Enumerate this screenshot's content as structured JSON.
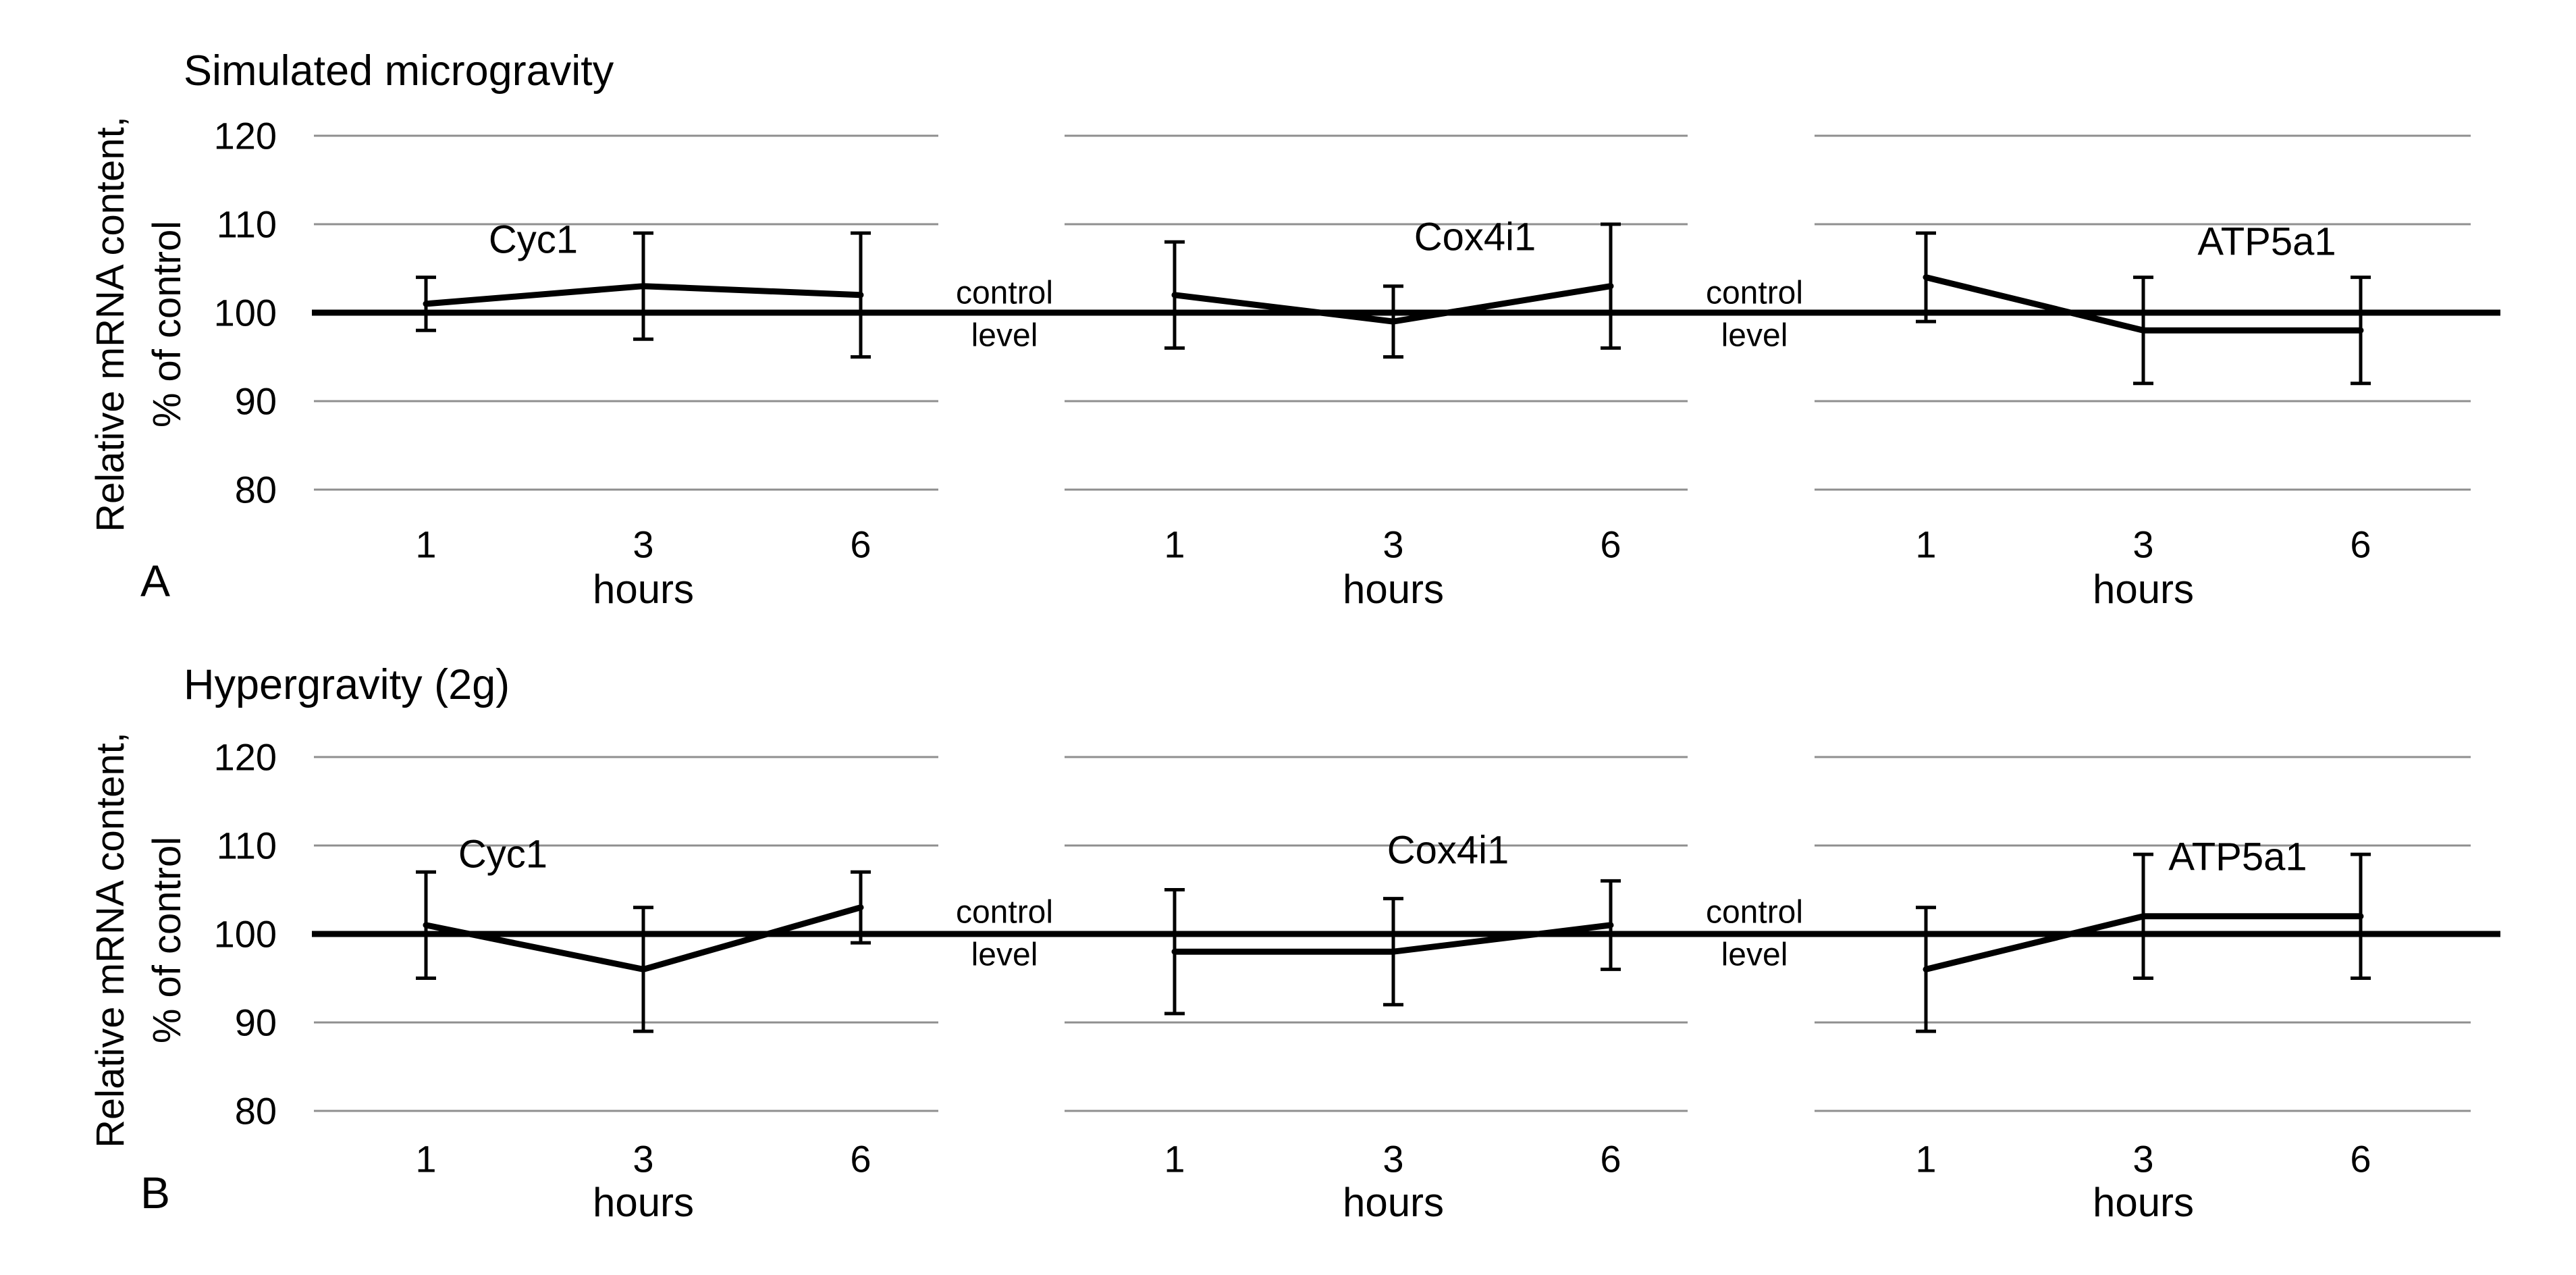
{
  "figure": {
    "row_a_title": "Simulated microgravity",
    "row_b_title": "Hypergravity (2g)",
    "panel_letter_a": "A",
    "panel_letter_b": "B",
    "y_axis_label_line1": "Relative mRNA content,",
    "y_axis_label_line2": "% of control",
    "control_level_line1": "control",
    "control_level_line2": "level"
  },
  "chart_data": [
    {
      "type": "line",
      "row": "A",
      "row_title": "Simulated microgravity",
      "gene": "Cyc1",
      "x": [
        "1",
        "3",
        "6"
      ],
      "xlabel": "hours",
      "ylabel": "Relative mRNA content, % of control",
      "values": [
        101,
        103,
        102
      ],
      "error_low": [
        98,
        97,
        95
      ],
      "error_high": [
        104,
        109,
        109
      ],
      "baseline": 100,
      "baseline_label": "control level",
      "yticks": [
        80,
        90,
        100,
        110,
        120
      ],
      "ylim": [
        75,
        125
      ],
      "grid": true,
      "legend": "none"
    },
    {
      "type": "line",
      "row": "A",
      "row_title": "Simulated microgravity",
      "gene": "Cox4i1",
      "x": [
        "1",
        "3",
        "6"
      ],
      "xlabel": "hours",
      "ylabel": "Relative mRNA content, % of control",
      "values": [
        102,
        99,
        103
      ],
      "error_low": [
        96,
        95,
        96
      ],
      "error_high": [
        108,
        103,
        110
      ],
      "baseline": 100,
      "baseline_label": "control level",
      "yticks": [
        80,
        90,
        100,
        110,
        120
      ],
      "ylim": [
        75,
        125
      ],
      "grid": true,
      "legend": "none"
    },
    {
      "type": "line",
      "row": "A",
      "row_title": "Simulated microgravity",
      "gene": "ATP5a1",
      "x": [
        "1",
        "3",
        "6"
      ],
      "xlabel": "hours",
      "ylabel": "Relative mRNA content, % of control",
      "values": [
        104,
        98,
        98
      ],
      "error_low": [
        99,
        92,
        92
      ],
      "error_high": [
        109,
        104,
        104
      ],
      "baseline": 100,
      "baseline_label": "control level",
      "yticks": [
        80,
        90,
        100,
        110,
        120
      ],
      "ylim": [
        75,
        125
      ],
      "grid": true,
      "legend": "none"
    },
    {
      "type": "line",
      "row": "B",
      "row_title": "Hypergravity (2g)",
      "gene": "Cyc1",
      "x": [
        "1",
        "3",
        "6"
      ],
      "xlabel": "hours",
      "ylabel": "Relative mRNA content, % of control",
      "values": [
        101,
        96,
        103
      ],
      "error_low": [
        95,
        89,
        99
      ],
      "error_high": [
        107,
        103,
        107
      ],
      "baseline": 100,
      "baseline_label": "control level",
      "yticks": [
        80,
        90,
        100,
        110,
        120
      ],
      "ylim": [
        75,
        125
      ],
      "grid": true,
      "legend": "none"
    },
    {
      "type": "line",
      "row": "B",
      "row_title": "Hypergravity (2g)",
      "gene": "Cox4i1",
      "x": [
        "1",
        "3",
        "6"
      ],
      "xlabel": "hours",
      "ylabel": "Relative mRNA content, % of control",
      "values": [
        98,
        98,
        101
      ],
      "error_low": [
        91,
        92,
        96
      ],
      "error_high": [
        105,
        104,
        106
      ],
      "baseline": 100,
      "baseline_label": "control level",
      "yticks": [
        80,
        90,
        100,
        110,
        120
      ],
      "ylim": [
        75,
        125
      ],
      "grid": true,
      "legend": "none"
    },
    {
      "type": "line",
      "row": "B",
      "row_title": "Hypergravity (2g)",
      "gene": "ATP5a1",
      "x": [
        "1",
        "3",
        "6"
      ],
      "xlabel": "hours",
      "ylabel": "Relative mRNA content, % of control",
      "values": [
        96,
        102,
        102
      ],
      "error_low": [
        89,
        95,
        95
      ],
      "error_high": [
        103,
        109,
        109
      ],
      "baseline": 100,
      "baseline_label": "control level",
      "yticks": [
        80,
        90,
        100,
        110,
        120
      ],
      "ylim": [
        75,
        125
      ],
      "grid": true,
      "legend": "none"
    }
  ]
}
